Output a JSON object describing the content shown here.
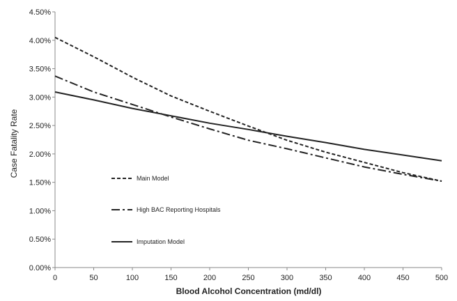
{
  "chart_data": {
    "type": "line",
    "title": "",
    "xlabel": "Blood Alcohol Concentration (md/dl)",
    "ylabel": "Case Fatality Rate",
    "xlim": [
      0,
      500
    ],
    "ylim": [
      0,
      4.5
    ],
    "x_ticks": [
      "0",
      "50",
      "100",
      "150",
      "200",
      "250",
      "300",
      "350",
      "400",
      "450",
      "500"
    ],
    "y_ticks": [
      "0.00%",
      "0.50%",
      "1.00%",
      "1.50%",
      "2.00%",
      "2.50%",
      "3.00%",
      "3.50%",
      "4.00%",
      "4.50%"
    ],
    "grid": false,
    "legend_placement": "left-center",
    "x": [
      0,
      50,
      100,
      150,
      200,
      250,
      300,
      350,
      400,
      450,
      500
    ],
    "series": [
      {
        "name": "Main Model",
        "style": "dashed",
        "color": "#222222",
        "values": [
          4.05,
          3.71,
          3.35,
          3.02,
          2.75,
          2.49,
          2.24,
          2.03,
          1.85,
          1.67,
          1.52
        ]
      },
      {
        "name": "High BAC Reporting Hospitals",
        "style": "dash-dot",
        "color": "#222222",
        "values": [
          3.37,
          3.09,
          2.87,
          2.65,
          2.44,
          2.24,
          2.09,
          1.93,
          1.77,
          1.64,
          1.52
        ]
      },
      {
        "name": "Imputation Model",
        "style": "solid",
        "color": "#222222",
        "values": [
          3.09,
          2.95,
          2.8,
          2.67,
          2.54,
          2.43,
          2.31,
          2.2,
          2.08,
          1.98,
          1.88
        ]
      }
    ]
  }
}
